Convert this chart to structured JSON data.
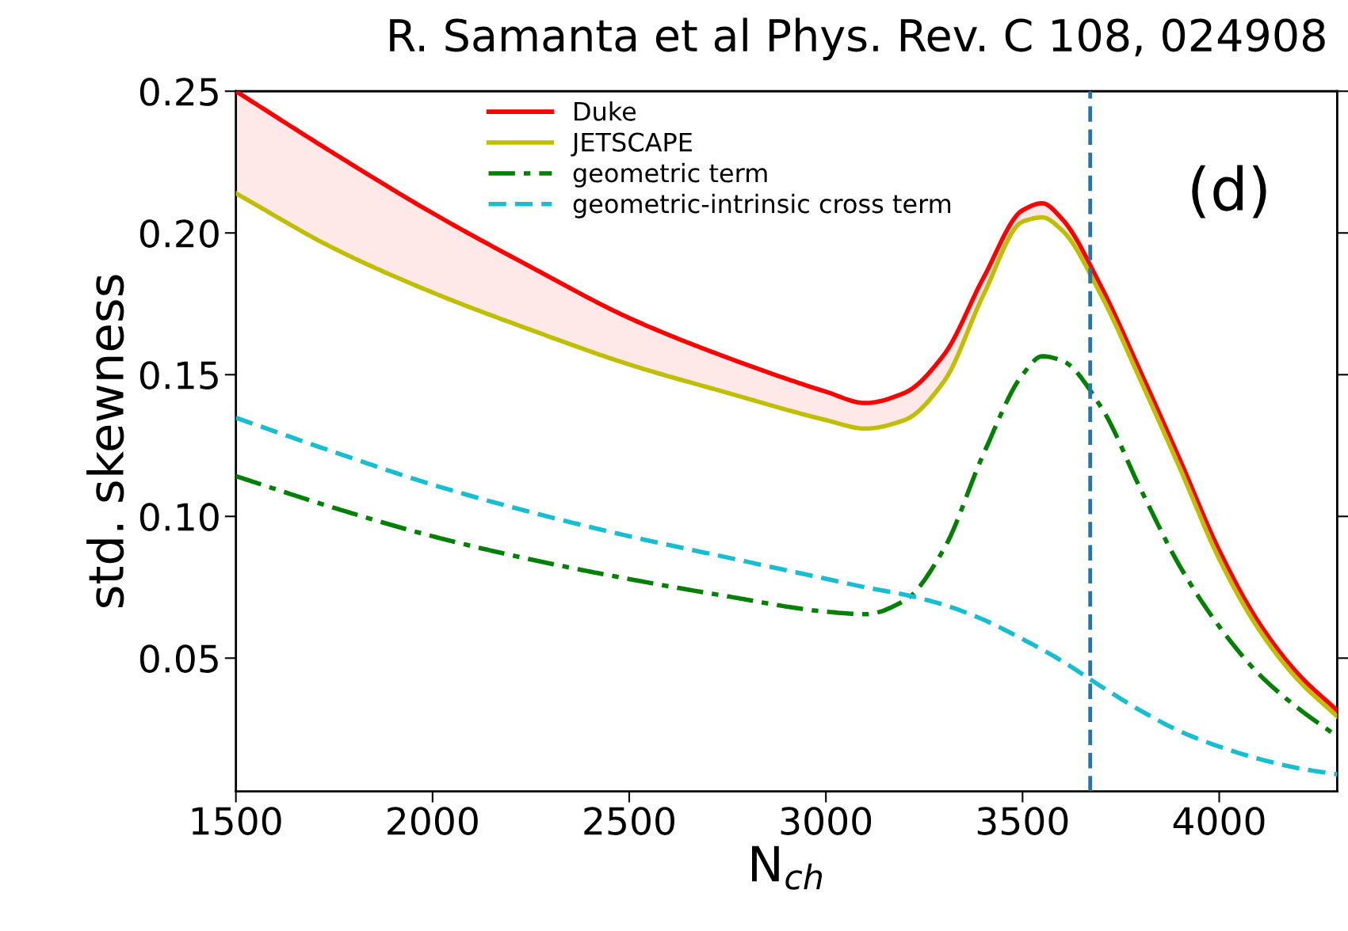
{
  "chart_data": {
    "type": "line",
    "title": "R. Samanta et al Phys. Rev. C 108, 024908",
    "xlabel": "N$_{ch}$",
    "ylabel": "std. skewness",
    "x": [
      1500,
      1750,
      2000,
      2250,
      2500,
      2750,
      3000,
      3100,
      3200,
      3300,
      3400,
      3500,
      3550,
      3600,
      3700,
      3800,
      3900,
      4000,
      4100,
      4200,
      4300
    ],
    "series": [
      {
        "name": "Duke",
        "color": "#ff0000",
        "line_style": "solid",
        "values": [
          0.25,
          0.228,
          0.207,
          0.188,
          0.17,
          0.156,
          0.144,
          0.14,
          0.1436,
          0.157,
          0.184,
          0.208,
          0.2105,
          0.205,
          0.181,
          0.151,
          0.12,
          0.088,
          0.0627,
          0.0445,
          0.0315
        ],
        "lower": [
          0.214,
          0.1945,
          0.179,
          0.1658,
          0.1536,
          0.1436,
          0.134,
          0.131,
          0.134,
          0.1476,
          0.178,
          0.204,
          0.2055,
          0.201,
          0.178,
          0.148,
          0.117,
          0.085,
          0.0603,
          0.0424,
          0.0294
        ],
        "upper": [
          0.25,
          0.228,
          0.207,
          0.188,
          0.17,
          0.156,
          0.144,
          0.14,
          0.1436,
          0.157,
          0.184,
          0.208,
          0.2105,
          0.205,
          0.181,
          0.151,
          0.12,
          0.088,
          0.0627,
          0.0445,
          0.0315
        ]
      },
      {
        "name": "JETSCAPE",
        "color": "#bfbf00",
        "line_style": "solid",
        "values": [
          0.214,
          0.1945,
          0.179,
          0.1658,
          0.1536,
          0.1436,
          0.134,
          0.131,
          0.134,
          0.1476,
          0.178,
          0.204,
          0.2055,
          0.201,
          0.178,
          0.148,
          0.117,
          0.085,
          0.0603,
          0.0424,
          0.0294
        ]
      },
      {
        "name": "geometric term",
        "color": "#008000",
        "line_style": "dashdot",
        "values": [
          0.1142,
          0.103,
          0.093,
          0.0848,
          0.0779,
          0.0718,
          0.0664,
          0.0655,
          0.0703,
          0.0885,
          0.1218,
          0.15,
          0.1565,
          0.155,
          0.1385,
          0.1097,
          0.0824,
          0.0612,
          0.0445,
          0.0324,
          0.0224
        ]
      },
      {
        "name": "geometric-intrinsic cross term",
        "color": "#17becf",
        "line_style": "dashed",
        "values": [
          0.1348,
          0.1227,
          0.1112,
          0.1015,
          0.093,
          0.0855,
          0.078,
          0.075,
          0.0724,
          0.0688,
          0.0636,
          0.0567,
          0.053,
          0.049,
          0.04,
          0.0315,
          0.0242,
          0.0188,
          0.0145,
          0.0112,
          0.009
        ]
      }
    ],
    "xlim": [
      1500,
      4300
    ],
    "xticks": [
      1500,
      2000,
      2500,
      3000,
      3500,
      4000
    ],
    "ylim": [
      0.003,
      0.25
    ],
    "yticks": [
      {
        "value": 0.05,
        "label": "0.05"
      },
      {
        "value": 0.1,
        "label": "0.10"
      },
      {
        "value": 0.15,
        "label": "0.15"
      },
      {
        "value": 0.2,
        "label": "0.20"
      },
      {
        "value": 0.25,
        "label": "0.25"
      }
    ],
    "ref_lines": [
      {
        "axis": "x",
        "value": 3672,
        "color": "#1f77b4",
        "line_style": "dashed"
      }
    ],
    "annotations": [
      "(d)"
    ],
    "legend": "top",
    "grid": false,
    "marker": "none"
  }
}
